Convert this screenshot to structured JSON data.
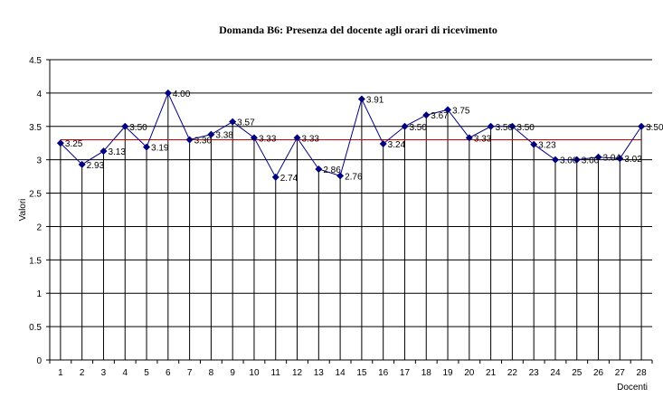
{
  "chart_data": {
    "type": "line",
    "title": "Domanda B6: Presenza del docente agli orari di ricevimento",
    "xlabel": "Docenti",
    "ylabel": "Valori",
    "categories": [
      "1",
      "2",
      "3",
      "4",
      "5",
      "6",
      "7",
      "8",
      "9",
      "10",
      "11",
      "12",
      "13",
      "14",
      "15",
      "16",
      "17",
      "18",
      "19",
      "20",
      "21",
      "22",
      "23",
      "24",
      "25",
      "26",
      "27",
      "28"
    ],
    "values": [
      3.25,
      2.93,
      3.13,
      3.5,
      3.19,
      4.0,
      3.3,
      3.38,
      3.57,
      3.33,
      2.74,
      3.33,
      2.86,
      2.76,
      3.91,
      3.24,
      3.5,
      3.67,
      3.75,
      3.33,
      3.5,
      3.5,
      3.23,
      3.0,
      3.0,
      3.04,
      3.02,
      3.5
    ],
    "data_labels": [
      "3.25",
      "2.93",
      "3.13",
      "3.50",
      "3.19",
      "4.00",
      "3.30",
      "3.38",
      "3.57",
      "3.33",
      "2.74",
      "3.33",
      "2.86",
      "2.76",
      "3.91",
      "3.24",
      "3.50",
      "3.67",
      "3.75",
      "3.33",
      "3.50",
      "3.50",
      "3.23",
      "3.00",
      "3.00",
      "3.04",
      "3.02",
      "3.50"
    ],
    "reference_line": 3.3,
    "ylim": [
      0,
      4.5
    ],
    "yticks": [
      "0",
      "0.5",
      "1",
      "1.5",
      "2",
      "2.5",
      "3",
      "3.5",
      "4",
      "4.5"
    ],
    "grid": true,
    "drop_lines": true,
    "colors": {
      "series": "#000080",
      "reference": "#cc0000",
      "grid": "#000000"
    }
  }
}
